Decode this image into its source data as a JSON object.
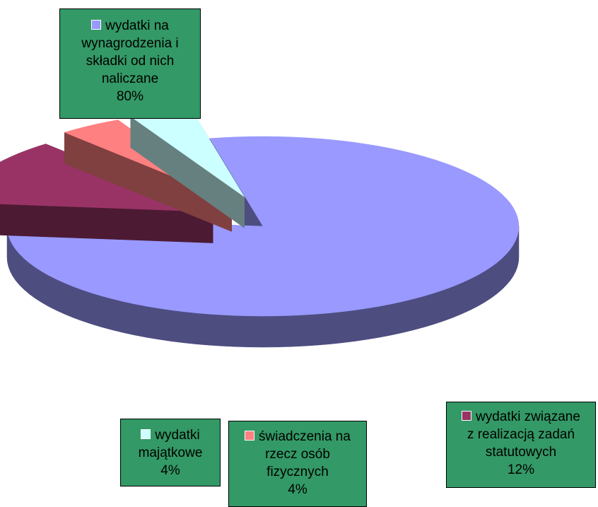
{
  "chart_data": {
    "type": "pie",
    "style": "3d-exploded",
    "slices": [
      {
        "label_lines": [
          "wydatki na",
          "wynagrodzenia i",
          "składki od nich",
          "naliczane"
        ],
        "percent_label": "80%",
        "value": 80,
        "top_color": "#9999ff",
        "side_color": "#4d4d80"
      },
      {
        "label_lines": [
          "wydatki związane",
          "z realizacją zadań",
          "statutowych"
        ],
        "percent_label": "12%",
        "value": 12,
        "top_color": "#993366",
        "side_color": "#4d1a33"
      },
      {
        "label_lines": [
          "świadczenia na",
          "rzecz osób",
          "fizycznych"
        ],
        "percent_label": "4%",
        "value": 4,
        "top_color": "#ff8080",
        "side_color": "#804040"
      },
      {
        "label_lines": [
          "wydatki",
          "majątkowe"
        ],
        "percent_label": "4%",
        "value": 4,
        "top_color": "#ccffff",
        "side_color": "#668080"
      }
    ],
    "label_box_color": "#339966",
    "legend": "none"
  }
}
